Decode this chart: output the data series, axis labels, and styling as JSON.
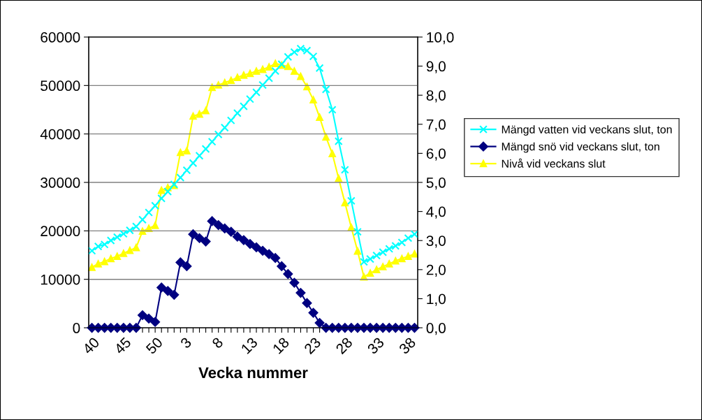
{
  "chart_data": {
    "type": "line",
    "xlabel": "Vecka nummer",
    "categories": [
      "40",
      null,
      null,
      null,
      null,
      "45",
      null,
      null,
      null,
      null,
      "50",
      null,
      null,
      null,
      null,
      "3",
      null,
      null,
      null,
      null,
      "8",
      null,
      null,
      null,
      null,
      "13",
      null,
      null,
      null,
      null,
      "18",
      null,
      null,
      null,
      null,
      "23",
      null,
      null,
      null,
      null,
      "28",
      null,
      null,
      null,
      null,
      "33",
      null,
      null,
      null,
      null,
      "38",
      null
    ],
    "series": [
      {
        "name": "Mängd vatten vid veckans slut, ton",
        "color": "#00ffff",
        "marker": "cross",
        "values": [
          15900,
          16800,
          17200,
          18000,
          18700,
          19400,
          20100,
          20900,
          22300,
          23800,
          25200,
          26700,
          28100,
          29600,
          31000,
          32500,
          34000,
          35500,
          36900,
          38400,
          39900,
          41300,
          42800,
          44300,
          45700,
          47200,
          48600,
          50100,
          51500,
          53000,
          54400,
          55900,
          56900,
          57600,
          57200,
          56000,
          53600,
          49200,
          45000,
          38500,
          32600,
          26200,
          19800,
          13600,
          14200,
          14900,
          15600,
          16300,
          16900,
          17600,
          18500,
          19300
        ]
      },
      {
        "name": "Mängd snö vid veckans slut, ton",
        "color": "#000080",
        "marker": "diamond",
        "values": [
          0,
          0,
          0,
          0,
          0,
          0,
          0,
          0,
          2600,
          1900,
          1200,
          8300,
          7600,
          6800,
          13500,
          12700,
          19300,
          18500,
          17800,
          22000,
          21200,
          20500,
          19800,
          18800,
          18100,
          17300,
          16600,
          15900,
          15200,
          14400,
          12700,
          11100,
          9300,
          7200,
          5100,
          3100,
          1000,
          0,
          0,
          0,
          0,
          0,
          0,
          0,
          0,
          0,
          0,
          0,
          0,
          0,
          0,
          0
        ]
      },
      {
        "name": "Nivå vid veckans slut",
        "color": "#ffff00",
        "marker": "triangle",
        "axis": "y2",
        "values": [
          2.08,
          2.2,
          2.28,
          2.38,
          2.46,
          2.56,
          2.66,
          2.76,
          3.32,
          3.42,
          3.52,
          4.73,
          4.82,
          4.9,
          6.03,
          6.09,
          7.28,
          7.35,
          7.47,
          8.27,
          8.35,
          8.43,
          8.51,
          8.61,
          8.69,
          8.75,
          8.83,
          8.89,
          8.97,
          9.09,
          9.03,
          8.99,
          8.83,
          8.65,
          8.29,
          7.84,
          7.24,
          6.56,
          5.99,
          5.14,
          4.3,
          3.45,
          2.64,
          1.75,
          1.88,
          2.0,
          2.1,
          2.2,
          2.3,
          2.38,
          2.46,
          2.54
        ]
      }
    ],
    "ylim": [
      0,
      60000
    ],
    "yticks": [
      0,
      10000,
      20000,
      30000,
      40000,
      50000,
      60000
    ],
    "y2lim": [
      0,
      10
    ],
    "y2ticks": [
      {
        "value": 0,
        "label": "0,0"
      },
      {
        "value": 1,
        "label": "1,0"
      },
      {
        "value": 2,
        "label": "2,0"
      },
      {
        "value": 3,
        "label": "3,0"
      },
      {
        "value": 4,
        "label": "4,0"
      },
      {
        "value": 5,
        "label": "5,0"
      },
      {
        "value": 6,
        "label": "6,0"
      },
      {
        "value": 7,
        "label": "7,0"
      },
      {
        "value": 8,
        "label": "8,0"
      },
      {
        "value": 9,
        "label": "9,0"
      },
      {
        "value": 10,
        "label": "10,0"
      }
    ],
    "grid": "y",
    "legend": "right",
    "line_style": "solid"
  }
}
